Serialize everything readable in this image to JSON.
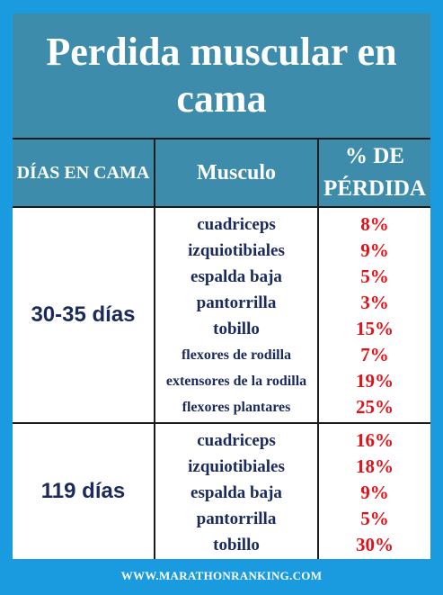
{
  "title": "Perdida muscular en cama",
  "headers": {
    "days": "DÍAS EN CAMA",
    "muscle": "Musculo",
    "loss": "% DE PÉRDIDA"
  },
  "groups": [
    {
      "days": "30-35  días",
      "rows": [
        {
          "muscle": "cuadriceps",
          "loss": "8%"
        },
        {
          "muscle": "izquiotibiales",
          "loss": "9%"
        },
        {
          "muscle": "espalda baja",
          "loss": "5%"
        },
        {
          "muscle": "pantorrilla",
          "loss": "3%"
        },
        {
          "muscle": "tobillo",
          "loss": "15%"
        },
        {
          "muscle": "flexores de rodilla",
          "loss": "7%"
        },
        {
          "muscle": "extensores de la rodilla",
          "loss": "19%"
        },
        {
          "muscle": "flexores plantares",
          "loss": "25%"
        }
      ]
    },
    {
      "days": "119  días",
      "rows": [
        {
          "muscle": "cuadriceps",
          "loss": "16%"
        },
        {
          "muscle": "izquiotibiales",
          "loss": "18%"
        },
        {
          "muscle": "espalda baja",
          "loss": "9%"
        },
        {
          "muscle": "pantorrilla",
          "loss": "5%"
        },
        {
          "muscle": "tobillo",
          "loss": "30%"
        }
      ]
    }
  ],
  "footer": "WWW.MARATHONRANKING.COM",
  "colors": {
    "background": "#1a9be0",
    "header": "#3d8cab",
    "muscle_text": "#1b2a5c",
    "percent_text": "#e0131a"
  }
}
